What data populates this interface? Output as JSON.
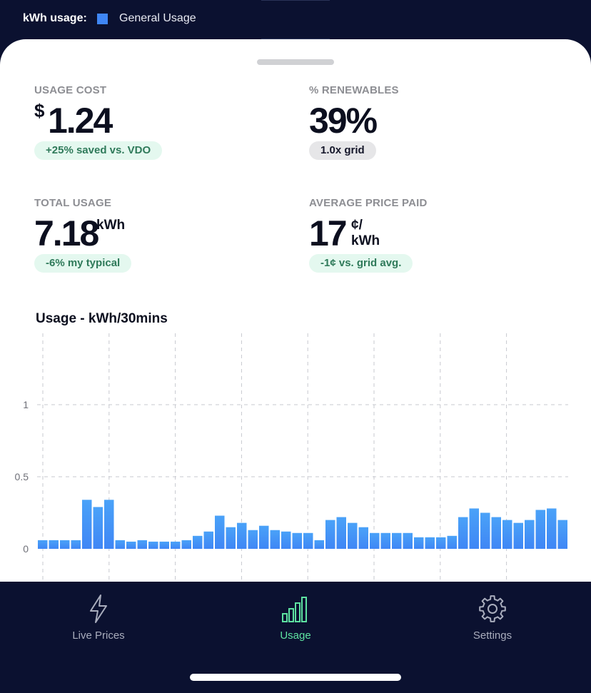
{
  "legend": {
    "label": "kWh usage:",
    "series_name": "General Usage",
    "series_color": "#3f86f5"
  },
  "stats": {
    "usage_cost": {
      "caption": "USAGE COST",
      "currency": "$",
      "value": "1.24",
      "badge": "+25% saved vs. VDO"
    },
    "renewables": {
      "caption": "% RENEWABLES",
      "value": "39%",
      "badge": "1.0x grid"
    },
    "total_usage": {
      "caption": "TOTAL USAGE",
      "value": "7.18",
      "unit": "kWh",
      "badge": "-6% my typical"
    },
    "avg_price": {
      "caption": "AVERAGE PRICE PAID",
      "value": "17",
      "unit_top": "¢/",
      "unit_bottom": "kWh",
      "badge": "-1¢ vs. grid avg."
    }
  },
  "chart_data": {
    "type": "bar",
    "title": "Usage - kWh/30mins",
    "series": [
      {
        "name": "General Usage",
        "color": "#3f86f5",
        "values": [
          0.06,
          0.06,
          0.06,
          0.06,
          0.34,
          0.29,
          0.34,
          0.06,
          0.05,
          0.06,
          0.05,
          0.05,
          0.05,
          0.06,
          0.09,
          0.12,
          0.23,
          0.15,
          0.18,
          0.13,
          0.16,
          0.13,
          0.12,
          0.11,
          0.11,
          0.06,
          0.2,
          0.22,
          0.18,
          0.15,
          0.11,
          0.11,
          0.11,
          0.11,
          0.08,
          0.08,
          0.08,
          0.09,
          0.22,
          0.28,
          0.25,
          0.22,
          0.2,
          0.18,
          0.2,
          0.27,
          0.28,
          0.2
        ]
      }
    ],
    "ylim": [
      0,
      1
    ],
    "yticks": [
      "0",
      "0.5",
      "1"
    ],
    "grid": true
  },
  "tabs": [
    {
      "label": "Live Prices",
      "icon": "lightning-icon",
      "active": false
    },
    {
      "label": "Usage",
      "icon": "bar-chart-icon",
      "active": true
    },
    {
      "label": "Settings",
      "icon": "gear-icon",
      "active": false
    }
  ],
  "colors": {
    "background": "#0b1130",
    "accent": "#5ee3a1",
    "badge_green_bg": "#e4f8ef",
    "badge_green_text": "#2f7a5a"
  }
}
